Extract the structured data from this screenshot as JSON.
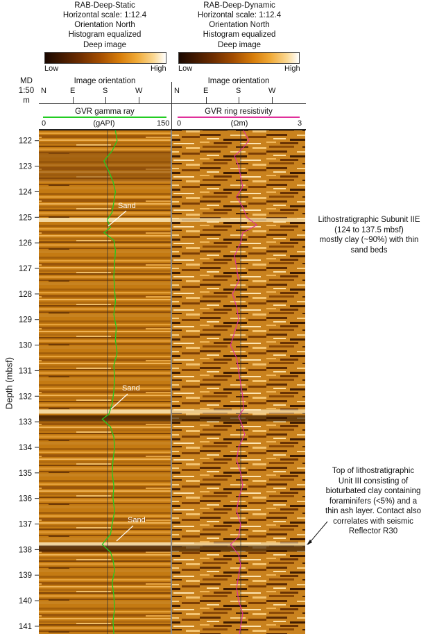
{
  "panels": {
    "static": {
      "title_lines": [
        "RAB-Deep-Static",
        "Horizontal scale: 1:12.4",
        "Orientation North",
        "Histogram equalized"
      ],
      "colorbar_title": "Deep image",
      "colorbar_low": "Low",
      "colorbar_high": "High",
      "orientation_title": "Image orientation",
      "orientation_labels": [
        "N",
        "E",
        "S",
        "W"
      ],
      "curve_title": "GVR gamma ray",
      "curve_unit": "(gAPI)",
      "curve_min": "0",
      "curve_max": "150",
      "curve_color": "#22cc22"
    },
    "dynamic": {
      "title_lines": [
        "RAB-Deep-Dynamic",
        "Horizontal scale: 1:12.4",
        "Orientation North",
        "Histogram equalized"
      ],
      "colorbar_title": "Deep image",
      "colorbar_low": "Low",
      "colorbar_high": "High",
      "orientation_title": "Image orientation",
      "orientation_labels": [
        "N",
        "E",
        "S",
        "W"
      ],
      "curve_title": "GVR ring resistivity",
      "curve_unit": "(Ωm)",
      "curve_min": "0",
      "curve_max": "3",
      "curve_color": "#e0309a"
    }
  },
  "md_label": [
    "MD",
    "1:50",
    "m"
  ],
  "annotations": {
    "sand_labels": [
      "Sand",
      "Sand",
      "Sand"
    ],
    "subunit_note": [
      "Lithostratigraphic Subunit IIE",
      "(124 to 137.5 mbsf)",
      "mostly clay (~90%) with thin",
      "sand beds"
    ],
    "unit_note": [
      "Top of lithostratigraphic",
      "Unit III consisting of",
      "bioturbated clay containing",
      "foraminifers (<5%) and a",
      "thin ash layer. Contact also",
      "correlates with seismic",
      "Reflector R30"
    ]
  },
  "chart_data": {
    "type": "line",
    "ylabel": "Depth (mbsf)",
    "y_ticks": [
      122,
      123,
      124,
      125,
      126,
      127,
      128,
      129,
      130,
      131,
      132,
      133,
      134,
      135,
      136,
      137,
      138,
      139,
      140,
      141
    ],
    "ylim": [
      121.6,
      141.3
    ],
    "series": [
      {
        "name": "GVR gamma ray",
        "unit": "gAPI",
        "xlim": [
          0,
          150
        ],
        "depth": [
          121.6,
          122.0,
          122.4,
          122.8,
          123.2,
          123.6,
          124.0,
          124.4,
          124.8,
          125.1,
          125.4,
          125.6,
          125.9,
          126.3,
          126.8,
          127.3,
          127.8,
          128.3,
          128.8,
          129.3,
          129.8,
          130.3,
          130.8,
          131.3,
          131.8,
          132.3,
          132.7,
          132.9,
          133.2,
          133.6,
          134.0,
          134.5,
          135.0,
          135.5,
          136.0,
          136.5,
          137.0,
          137.4,
          137.8,
          138.1,
          138.4,
          138.8,
          139.3,
          139.8,
          140.3,
          140.8,
          141.3
        ],
        "values": [
          88,
          90,
          84,
          74,
          80,
          85,
          88,
          86,
          84,
          78,
          82,
          74,
          86,
          88,
          87,
          86,
          87,
          88,
          86,
          89,
          88,
          90,
          86,
          87,
          86,
          84,
          80,
          72,
          82,
          86,
          87,
          85,
          84,
          86,
          85,
          87,
          84,
          82,
          72,
          82,
          85,
          87,
          84,
          86,
          87,
          85,
          86
        ]
      },
      {
        "name": "GVR ring resistivity",
        "unit": "Ωm",
        "xlim": [
          0,
          3
        ],
        "depth": [
          121.6,
          122.0,
          122.3,
          122.6,
          123.0,
          123.4,
          123.8,
          124.2,
          124.6,
          125.0,
          125.3,
          125.6,
          126.0,
          126.5,
          127.0,
          127.5,
          128.0,
          128.5,
          129.0,
          129.5,
          130.0,
          130.5,
          131.0,
          131.5,
          132.0,
          132.5,
          132.8,
          133.1,
          133.5,
          134.0,
          134.5,
          135.0,
          135.5,
          136.0,
          136.5,
          137.0,
          137.5,
          137.8,
          138.2,
          138.6,
          139.0,
          139.5,
          140.0,
          140.5,
          141.0,
          141.3
        ],
        "values": [
          1.62,
          1.75,
          1.6,
          1.4,
          1.5,
          1.55,
          1.6,
          1.45,
          1.6,
          1.7,
          1.95,
          1.6,
          1.55,
          1.4,
          1.45,
          1.5,
          1.35,
          1.45,
          1.5,
          1.4,
          1.3,
          1.45,
          1.5,
          1.55,
          1.6,
          1.62,
          1.5,
          1.58,
          1.65,
          1.5,
          1.45,
          1.55,
          1.6,
          1.5,
          1.45,
          1.55,
          1.5,
          1.3,
          1.5,
          1.55,
          1.5,
          1.45,
          1.5,
          1.6,
          1.55,
          1.52
        ]
      }
    ],
    "sand_depths": [
      125.1,
      132.6,
      137.8
    ],
    "contact_depth": 137.8
  }
}
